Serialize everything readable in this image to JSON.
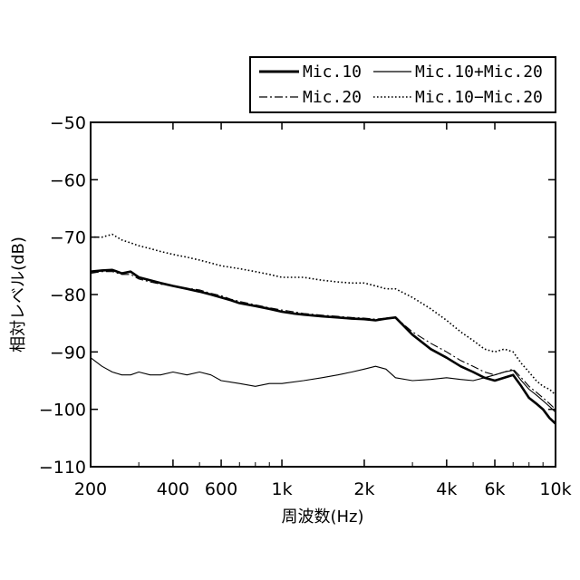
{
  "chart_data": {
    "type": "line",
    "title": "",
    "xlabel": "周波数(Hz)",
    "ylabel": "相対レベル(dB)",
    "x_scale": "log",
    "xlim": [
      200,
      10000
    ],
    "ylim": [
      -110,
      -50
    ],
    "x_ticks": [
      200,
      400,
      600,
      1000,
      2000,
      4000,
      6000,
      10000
    ],
    "x_tick_labels": [
      "200",
      "400",
      "600",
      "1k",
      "2k",
      "4k",
      "6k",
      "10k"
    ],
    "y_ticks": [
      -50,
      -60,
      -70,
      -80,
      -90,
      -100,
      -110
    ],
    "y_tick_labels": [
      "−50",
      "−60",
      "−70",
      "−80",
      "−90",
      "−100",
      "−110"
    ],
    "grid": false,
    "legend_position": "top-right",
    "series": [
      {
        "name": "Mic.10",
        "style": "solid-thick",
        "x": [
          200,
          220,
          240,
          260,
          280,
          300,
          330,
          360,
          400,
          450,
          500,
          550,
          600,
          650,
          700,
          800,
          900,
          1000,
          1100,
          1200,
          1400,
          1600,
          1800,
          2000,
          2200,
          2400,
          2600,
          3000,
          3500,
          4000,
          4500,
          5000,
          5500,
          6000,
          6500,
          7000,
          7500,
          8000,
          8500,
          9000,
          9500,
          10000
        ],
        "y": [
          -76,
          -75.8,
          -75.7,
          -76.3,
          -76,
          -77,
          -77.5,
          -78,
          -78.5,
          -79,
          -79.5,
          -80,
          -80.5,
          -81,
          -81.5,
          -82,
          -82.5,
          -83,
          -83.3,
          -83.5,
          -83.8,
          -84,
          -84.2,
          -84.3,
          -84.5,
          -84.2,
          -84,
          -87,
          -89.5,
          -91,
          -92.5,
          -93.5,
          -94.5,
          -95,
          -94.5,
          -94,
          -96,
          -98,
          -99,
          -100,
          -101.5,
          -102.5
        ]
      },
      {
        "name": "Mic.10+Mic.20",
        "style": "solid-thin",
        "x": [
          200,
          220,
          240,
          260,
          280,
          300,
          330,
          360,
          400,
          450,
          500,
          550,
          600,
          700,
          800,
          900,
          1000,
          1200,
          1400,
          1600,
          1800,
          2000,
          2200,
          2400,
          2600,
          3000,
          3500,
          4000,
          4500,
          5000,
          5500,
          6000,
          6500,
          7000,
          7500,
          8000,
          8500,
          9000,
          9500,
          10000
        ],
        "y": [
          -91,
          -92.5,
          -93.5,
          -94,
          -94,
          -93.5,
          -94,
          -94,
          -93.5,
          -94,
          -93.5,
          -94,
          -95,
          -95.5,
          -96,
          -95.5,
          -95.5,
          -95,
          -94.5,
          -94,
          -93.5,
          -93,
          -92.5,
          -93,
          -94.5,
          -95,
          -94.8,
          -94.5,
          -94.8,
          -95,
          -94.5,
          -94,
          -93.5,
          -93.2,
          -95,
          -96.5,
          -97.5,
          -98.5,
          -99.5,
          -100.5
        ]
      },
      {
        "name": "Mic.20",
        "style": "dash-dot",
        "x": [
          200,
          220,
          240,
          260,
          280,
          300,
          330,
          360,
          400,
          450,
          500,
          550,
          600,
          650,
          700,
          800,
          900,
          1000,
          1100,
          1200,
          1400,
          1600,
          1800,
          2000,
          2200,
          2400,
          2600,
          3000,
          3500,
          4000,
          4500,
          5000,
          5500,
          6000,
          6500,
          7000,
          7500,
          8000,
          8500,
          9000,
          9500,
          10000
        ],
        "y": [
          -76.3,
          -76,
          -76,
          -76.5,
          -76.5,
          -77.3,
          -77.8,
          -78.2,
          -78.5,
          -78.9,
          -79.2,
          -79.8,
          -80.2,
          -80.8,
          -81.2,
          -81.8,
          -82.3,
          -82.7,
          -83,
          -83.3,
          -83.6,
          -83.8,
          -84,
          -84.1,
          -84.3,
          -84.1,
          -84,
          -86.5,
          -88.5,
          -90,
          -91.5,
          -92.5,
          -93.5,
          -94,
          -93.5,
          -93,
          -94.5,
          -96,
          -97,
          -98,
          -99,
          -100
        ]
      },
      {
        "name": "Mic.10−Mic.20",
        "style": "dotted",
        "x": [
          200,
          220,
          240,
          260,
          280,
          300,
          330,
          360,
          400,
          450,
          500,
          550,
          600,
          700,
          800,
          900,
          1000,
          1100,
          1200,
          1400,
          1600,
          1800,
          2000,
          2200,
          2400,
          2600,
          3000,
          3500,
          4000,
          4500,
          5000,
          5500,
          6000,
          6500,
          7000,
          7500,
          8000,
          8500,
          9000,
          9500,
          10000
        ],
        "y": [
          -70,
          -70,
          -69.5,
          -70.5,
          -71,
          -71.5,
          -72,
          -72.5,
          -73,
          -73.5,
          -74,
          -74.5,
          -75,
          -75.5,
          -76,
          -76.5,
          -77,
          -77,
          -77,
          -77.5,
          -77.8,
          -78,
          -78,
          -78.5,
          -79,
          -79,
          -80.5,
          -82.5,
          -84.5,
          -86.5,
          -88,
          -89.5,
          -90,
          -89.5,
          -90,
          -92,
          -93.5,
          -95,
          -96,
          -96.5,
          -97.5
        ]
      }
    ]
  }
}
